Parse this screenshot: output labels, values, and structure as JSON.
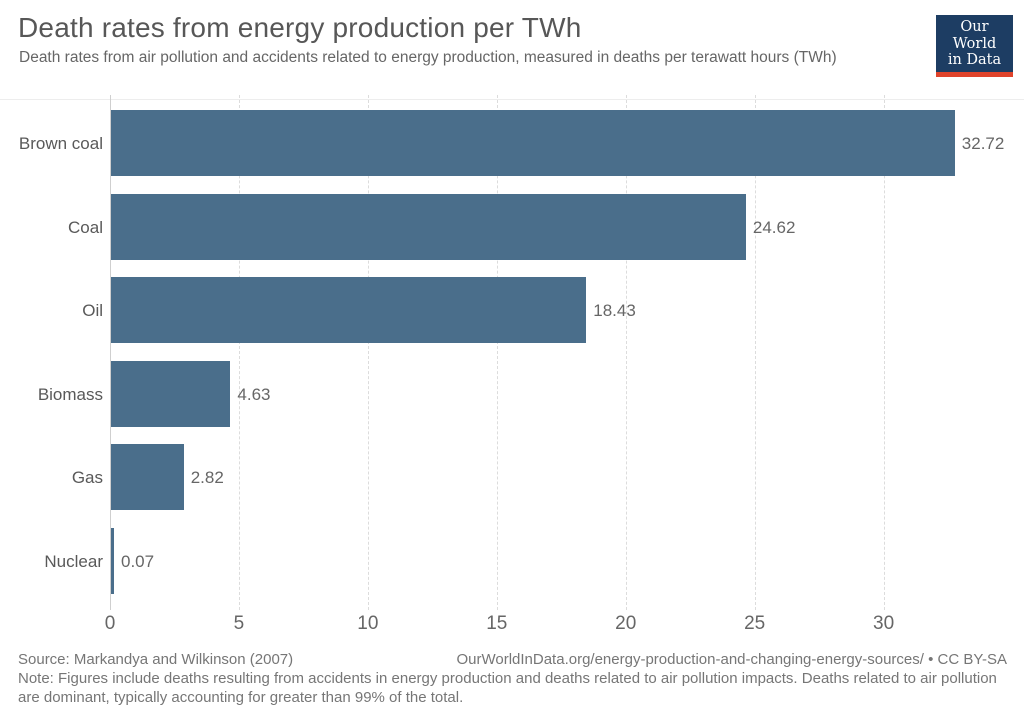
{
  "header": {
    "title": "Death rates from energy production per TWh",
    "subtitle": "Death rates from air pollution and accidents related to energy production, measured in deaths per terawatt hours (TWh)",
    "logo_line1": "Our World",
    "logo_line2": "in Data"
  },
  "chart_data": {
    "type": "bar",
    "orientation": "horizontal",
    "categories": [
      "Brown coal",
      "Coal",
      "Oil",
      "Biomass",
      "Gas",
      "Nuclear"
    ],
    "values": [
      32.72,
      24.62,
      18.43,
      4.63,
      2.82,
      0.07
    ],
    "value_labels": [
      "32.72",
      "24.62",
      "18.43",
      "4.63",
      "2.82",
      "0.07"
    ],
    "x_ticks": [
      "0",
      "5",
      "10",
      "15",
      "20",
      "25",
      "30"
    ],
    "x_tick_values": [
      0,
      5,
      10,
      15,
      20,
      25,
      30
    ],
    "xlim": [
      0,
      34.9
    ],
    "grid": true,
    "legend": "none",
    "title": "Death rates from energy production per TWh",
    "xlabel": "",
    "ylabel": ""
  },
  "colors": {
    "bar": "#4a6e8b",
    "logo_bg": "#1d3d63",
    "logo_accent": "#e0432b",
    "grid": "#dcdcdc",
    "text_primary": "#575757",
    "text_secondary": "#666666"
  },
  "footer": {
    "source": "Source: Markandya and Wilkinson (2007)",
    "link": "OurWorldInData.org/energy-production-and-changing-energy-sources/ • CC BY-SA",
    "note": "Note: Figures include deaths resulting from accidents in energy production and deaths related to air pollution impacts. Deaths related to air pollution are dominant, typically accounting for greater than 99% of the total."
  }
}
